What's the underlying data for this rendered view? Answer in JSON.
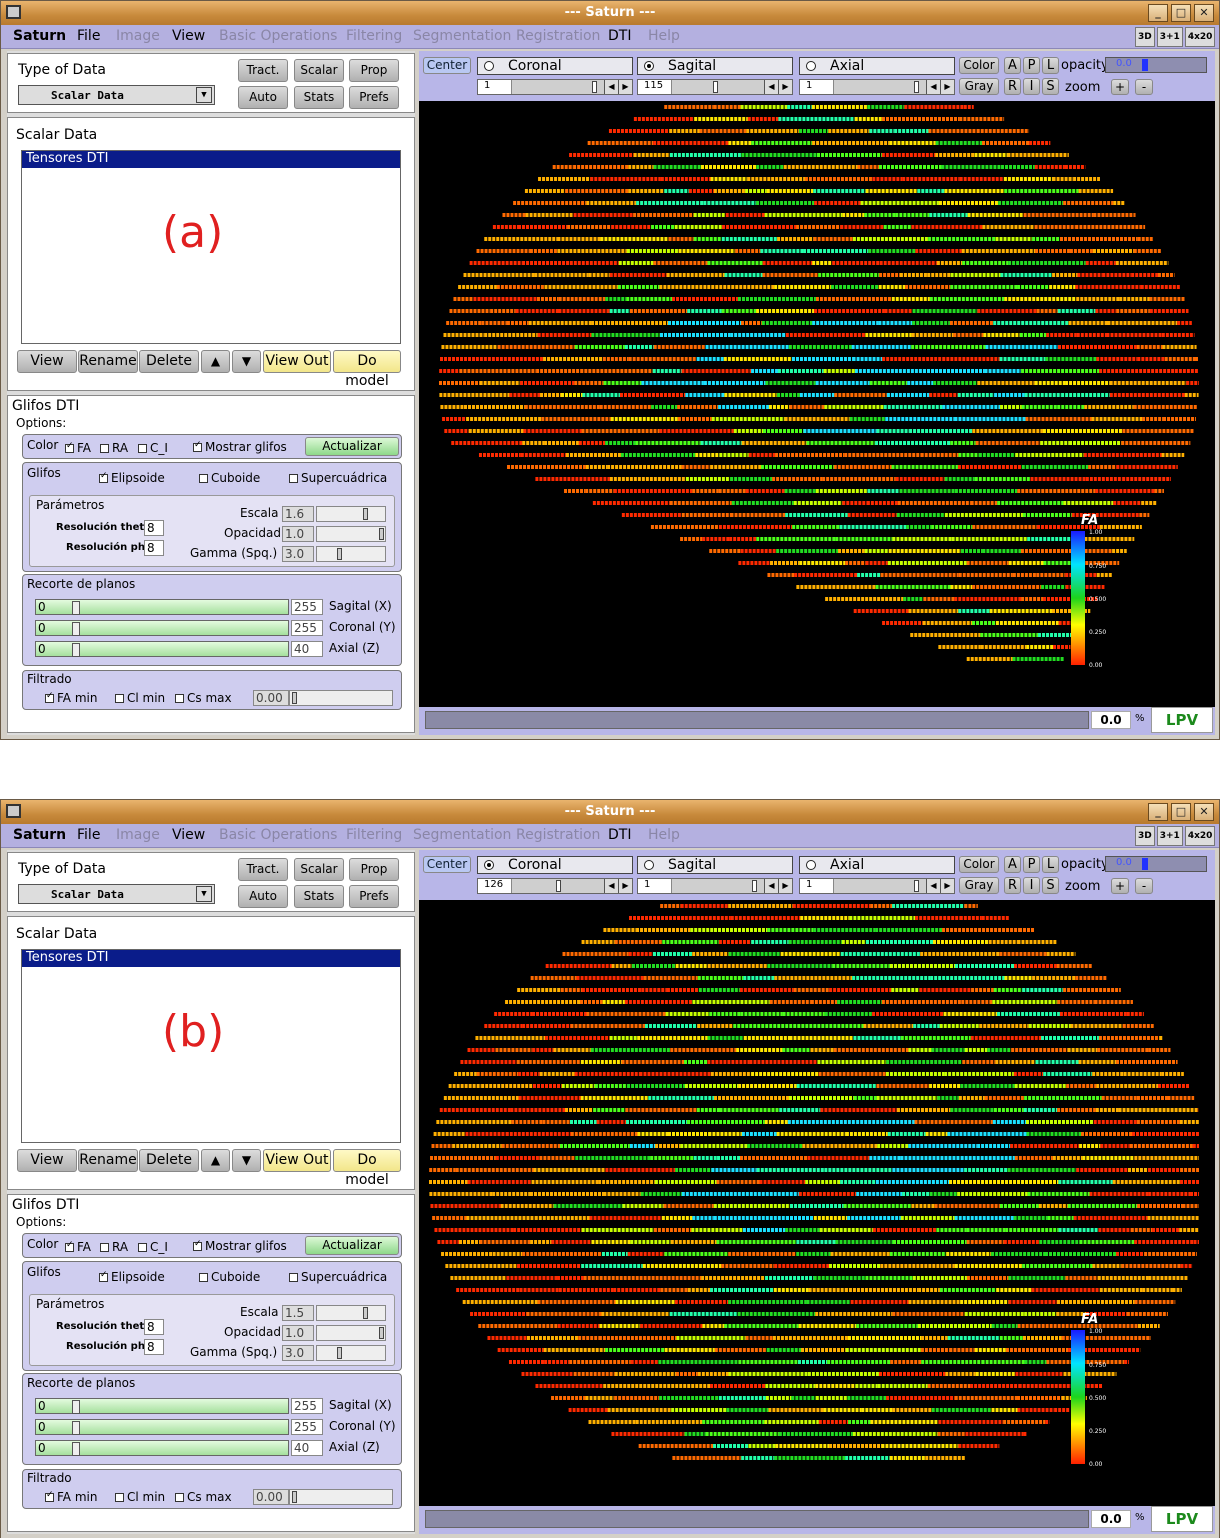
{
  "windows": [
    {
      "annotation": "(a)",
      "title": "--- Saturn ---",
      "coronal": {
        "label": "Coronal",
        "value": "1",
        "selected": false
      },
      "sagital": {
        "label": "Sagital",
        "value": "115",
        "selected": true
      },
      "axial": {
        "label": "Axial",
        "value": "1",
        "selected": false
      },
      "escala": "1.6",
      "opacidad": "1.0",
      "gamma": "3.0",
      "status_value": "0.0"
    },
    {
      "annotation": "(b)",
      "title": "--- Saturn ---",
      "coronal": {
        "label": "Coronal",
        "value": "126",
        "selected": true
      },
      "sagital": {
        "label": "Sagital",
        "value": "1",
        "selected": false
      },
      "axial": {
        "label": "Axial",
        "value": "1",
        "selected": false
      },
      "escala": "1.5",
      "opacidad": "1.0",
      "gamma": "3.0",
      "status_value": "0.0"
    }
  ],
  "menu": {
    "items": [
      "Saturn",
      "File",
      "Image",
      "View",
      "Basic Operations",
      "Filtering",
      "Segmentation",
      "Registration",
      "DTI",
      "Help"
    ],
    "disabled": [
      false,
      false,
      true,
      false,
      true,
      true,
      true,
      true,
      false,
      true
    ],
    "right": [
      "3D",
      "3+1",
      "4x20"
    ]
  },
  "left": {
    "type_label": "Type of Data",
    "type_value": "Scalar Data",
    "top_buttons": [
      "Tract.",
      "Scalar",
      "Prop",
      "Auto",
      "Stats",
      "Prefs"
    ],
    "list_title": "Scalar Data",
    "list_item": "Tensores DTI",
    "list_buttons": [
      "View",
      "Rename",
      "Delete",
      "▲",
      "▼",
      "View Out",
      "Do model"
    ],
    "glifos_title": "Glifos DTI",
    "options": "Options:",
    "color_label": "Color",
    "fa": "FA",
    "ra": "RA",
    "ci": "C_I",
    "mostrar": "Mostrar glifos",
    "actualizar": "Actualizar",
    "glifos_label": "Glifos",
    "elipsoide": "Elipsoide",
    "cuboide": "Cuboide",
    "supercuadrica": "Supercuádrica",
    "parametros": "Parámetros",
    "res_theta": "Resolución theta",
    "res_phi": "Resolución phi",
    "res_value": "8",
    "escala": "Escala",
    "opacidad": "Opacidad",
    "gamma": "Gamma (Spq.)",
    "recorte": "Recorte de planos",
    "planes": [
      {
        "min": "0",
        "max": "255",
        "label": "Sagital (X)"
      },
      {
        "min": "0",
        "max": "255",
        "label": "Coronal (Y)"
      },
      {
        "min": "0",
        "max": "40",
        "label": "Axial (Z)"
      }
    ],
    "filtrado": "Filtrado",
    "fa_min": "FA min",
    "cl_min": "Cl min",
    "cs_max": "Cs max",
    "filter_value": "0.00"
  },
  "viewer": {
    "center": "Center",
    "color_btn": "Color",
    "gray_btn": "Gray",
    "A": "A",
    "P": "P",
    "L": "L",
    "R": "R",
    "I": "I",
    "S": "S",
    "opacity": "opacity",
    "opacity_value": "0.0",
    "zoom": "zoom",
    "plus": "+",
    "minus": "-",
    "colorbar_title": "FA",
    "ticks": [
      "1.00",
      "0.750",
      "0.500",
      "0.250",
      "0.00"
    ],
    "pct": "%",
    "logo": "LPV"
  }
}
